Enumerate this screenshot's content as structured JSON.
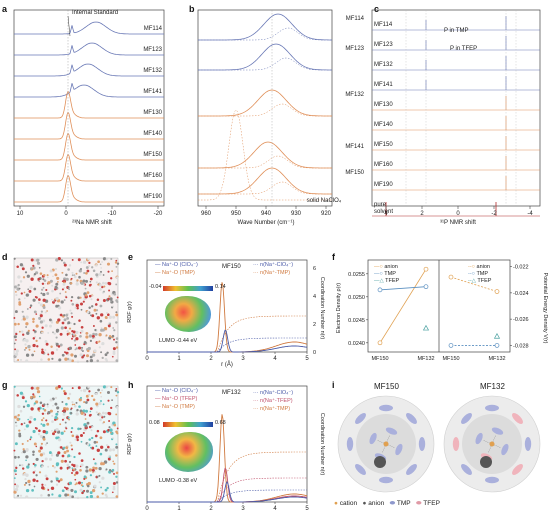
{
  "panels": {
    "a": {
      "label": "a",
      "annotation": "Internal Standard",
      "xlabel": "²³Na NMR shift",
      "xticks": [
        "10",
        "0",
        "-10",
        "-20"
      ],
      "samples": [
        "MF114",
        "MF123",
        "MF132",
        "MF141",
        "MF130",
        "MF140",
        "MF150",
        "MF160",
        "MF190"
      ]
    },
    "b": {
      "label": "b",
      "xlabel": "Wave Number (cm⁻¹)",
      "xticks": [
        "960",
        "950",
        "940",
        "930",
        "920"
      ],
      "samples": [
        "MF114",
        "MF123",
        "MF132",
        "MF141",
        "MF150"
      ],
      "bottom_label": "solid NaClO₄"
    },
    "c": {
      "label": "c",
      "xlabel": "³¹P NMR shift",
      "xticks": [
        "4",
        "2",
        "0",
        "-2",
        "-4"
      ],
      "samples": [
        "MF114",
        "MF123",
        "MF132",
        "MF141",
        "MF130",
        "MF140",
        "MF150",
        "MF160",
        "MF190"
      ],
      "bottom_label_1": "pure",
      "bottom_label_2": "solvent",
      "ann_tmp": "P in TMP",
      "ann_tfep": "P in TFEP"
    },
    "d": {
      "label": "d"
    },
    "e": {
      "label": "e",
      "sample": "MF150",
      "ylabel": "RDF g(r)",
      "y2label": "Coordination Number n(r)",
      "xlabel": "r (Å)",
      "xticks": [
        "0",
        "1",
        "2",
        "3",
        "4",
        "5"
      ],
      "yticks": [
        "0",
        "2",
        "4",
        "6"
      ],
      "legend_left": [
        "Na⁺-O (ClO₄⁻)",
        "Na⁺-O (TMP)"
      ],
      "legend_right": [
        "n(Na⁺-ClO₄⁻)",
        "n(Na⁺-TMP)"
      ],
      "scale_min": "-0.04",
      "scale_max": "0.14",
      "lumo": "LUMO  -0.44 eV"
    },
    "f": {
      "label": "f",
      "ylabel": "Electron Density ρ(r)",
      "y2label": "Potential Energy Density V(r)",
      "yticks": [
        "0.0240",
        "0.0245",
        "0.0250",
        "0.0255"
      ],
      "y2ticks": [
        "-0.022",
        "-0.024",
        "-0.026",
        "-0.028"
      ],
      "xticks": [
        "MF150",
        "MF132",
        "MF150",
        "MF132"
      ],
      "legend": [
        "anion",
        "TMP",
        "TFEP"
      ]
    },
    "g": {
      "label": "g"
    },
    "h": {
      "label": "h",
      "sample": "MF132",
      "ylabel": "RDF g(r)",
      "y2label": "Coordination Number n(r)",
      "xlabel": "r (Å)",
      "xticks": [
        "0",
        "1",
        "2",
        "3",
        "4",
        "5"
      ],
      "legend_left": [
        "Na⁺-O (ClO₄⁻)",
        "Na⁺-O (TFEP)",
        "Na⁺-O (TMP)"
      ],
      "legend_right": [
        "n(Na⁺-ClO₄⁻)",
        "n(Na⁺-TFEP)",
        "n(Na⁺-TMP)"
      ],
      "scale_min": "0.08",
      "scale_max": "0.68",
      "lumo": "LUMO  -0.38 eV"
    },
    "i": {
      "label": "i",
      "titles": [
        "MF150",
        "MF132"
      ],
      "legend": [
        "cation",
        "anion",
        "TMP",
        "TFEP"
      ]
    }
  },
  "colors": {
    "blue": "#6a79b6",
    "orange": "#e0905a",
    "gray": "#999999",
    "dark": "#555555",
    "red": "#b02a2a",
    "teal": "#4aa0a0"
  },
  "chart_data": [
    {
      "type": "line",
      "panel": "f",
      "x": [
        "MF150",
        "MF132"
      ],
      "series": [
        {
          "name": "anion",
          "values": [
            0.024,
            0.0256
          ]
        },
        {
          "name": "TMP",
          "values": [
            0.02515,
            0.02522
          ]
        },
        {
          "name": "TFEP",
          "values": [
            null,
            0.02432
          ]
        }
      ],
      "ylim": [
        0.0238,
        0.0258
      ]
    },
    {
      "type": "line",
      "panel": "f-right",
      "x": [
        "MF150",
        "MF132"
      ],
      "series": [
        {
          "name": "anion",
          "values": [
            -0.0228,
            -0.0239
          ]
        },
        {
          "name": "TMP",
          "values": [
            -0.028,
            -0.028
          ]
        },
        {
          "name": "TFEP",
          "values": [
            null,
            -0.0273
          ]
        }
      ],
      "ylim": [
        -0.0285,
        -0.0215
      ]
    }
  ]
}
